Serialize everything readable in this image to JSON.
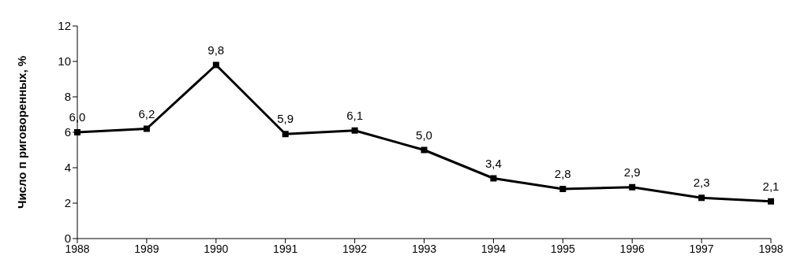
{
  "chart_data": {
    "type": "line",
    "ylabel": "Число п риговоренных, %",
    "categories": [
      "1988",
      "1989",
      "1990",
      "1991",
      "1992",
      "1993",
      "1994",
      "1995",
      "1996",
      "1997",
      "1998"
    ],
    "series": [
      {
        "color": "#000000",
        "values": [
          6.0,
          6.2,
          9.8,
          5.9,
          6.1,
          5.0,
          3.4,
          2.8,
          2.9,
          2.3,
          2.1
        ],
        "value_labels": [
          "6,0",
          "6,2",
          "9,8",
          "5,9",
          "6,1",
          "5,0",
          "3,4",
          "2,8",
          "2,9",
          "2,3",
          "2,1"
        ]
      }
    ],
    "ylim": [
      0,
      12
    ],
    "yticks": [
      0,
      2,
      4,
      6,
      8,
      10,
      12
    ],
    "grid": false,
    "legend": false,
    "marker": "square",
    "line_style": "solid"
  }
}
